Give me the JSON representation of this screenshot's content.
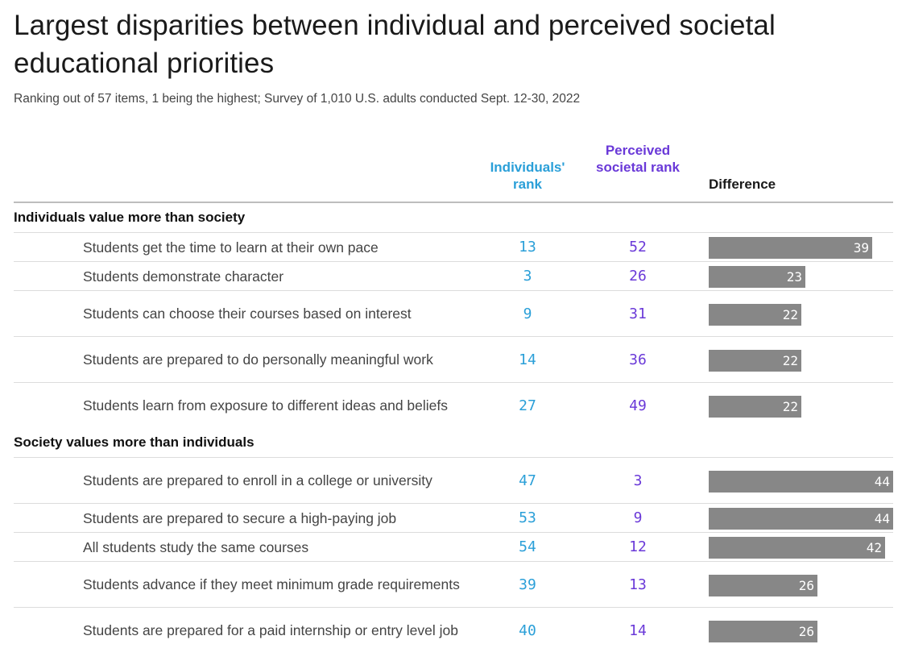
{
  "title": "Largest disparities between individual and perceived societal educational priorities",
  "subtitle": "Ranking out of 57 items, 1 being the highest; Survey of 1,010 U.S. adults conducted Sept. 12-30, 2022",
  "columns": {
    "individuals": "Individuals' rank",
    "societal": "Perceived societal rank",
    "difference": "Difference"
  },
  "colors": {
    "individuals": "#2a9fd8",
    "societal": "#6a39d8",
    "bar": "#878787"
  },
  "chart_data": {
    "type": "table",
    "title": "Largest disparities between individual and perceived societal educational priorities",
    "subtitle": "Ranking out of 57 items, 1 being the highest; Survey of 1,010 U.S. adults conducted Sept. 12-30, 2022",
    "columns": [
      "Individuals' rank",
      "Perceived societal rank",
      "Difference"
    ],
    "difference_scale_max": 44,
    "groups": [
      {
        "name": "Individuals value more than society",
        "rows": [
          {
            "label": "Students get the time to learn at their own pace",
            "individuals": 13,
            "societal": 52,
            "difference": 39
          },
          {
            "label": "Students demonstrate character",
            "individuals": 3,
            "societal": 26,
            "difference": 23
          },
          {
            "label": "Students can choose their courses based on interest",
            "individuals": 9,
            "societal": 31,
            "difference": 22
          },
          {
            "label": "Students are prepared to do personally meaningful work",
            "individuals": 14,
            "societal": 36,
            "difference": 22
          },
          {
            "label": "Students learn from exposure to different ideas and beliefs",
            "individuals": 27,
            "societal": 49,
            "difference": 22
          }
        ]
      },
      {
        "name": "Society values more than individuals",
        "rows": [
          {
            "label": "Students are prepared to enroll in a college or university",
            "individuals": 47,
            "societal": 3,
            "difference": 44
          },
          {
            "label": "Students are prepared to secure a high-paying job",
            "individuals": 53,
            "societal": 9,
            "difference": 44
          },
          {
            "label": "All students study the same courses",
            "individuals": 54,
            "societal": 12,
            "difference": 42
          },
          {
            "label": "Students advance if they meet minimum grade requirements",
            "individuals": 39,
            "societal": 13,
            "difference": 26
          },
          {
            "label": "Students are prepared for a paid internship or entry level job",
            "individuals": 40,
            "societal": 14,
            "difference": 26
          }
        ]
      }
    ]
  }
}
